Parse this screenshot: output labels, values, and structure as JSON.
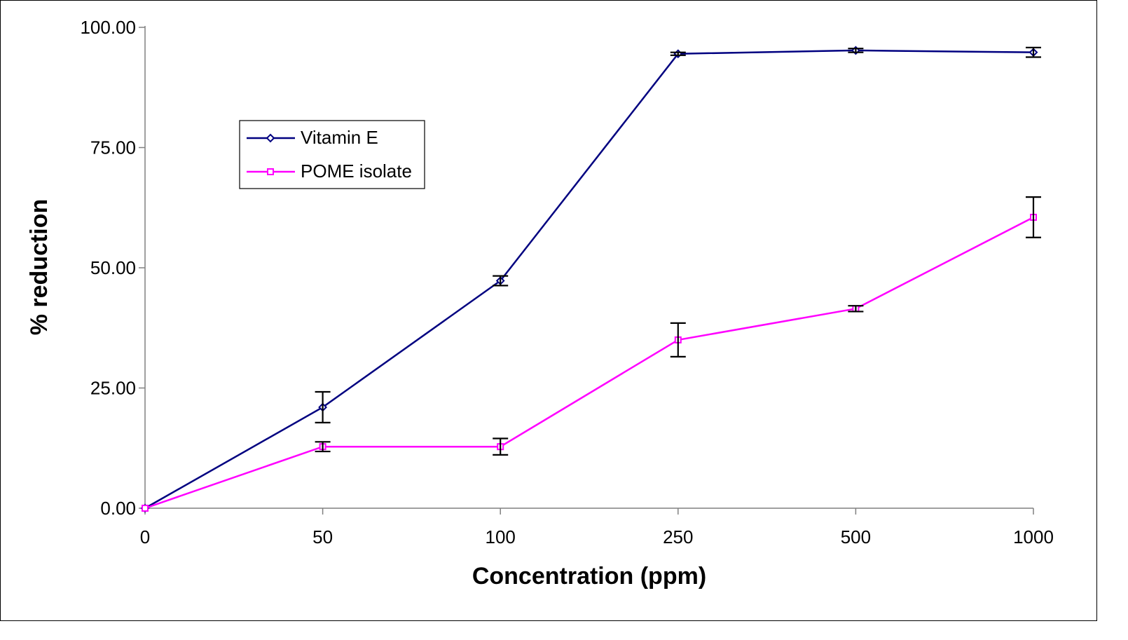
{
  "chart_data": {
    "type": "line",
    "categories": [
      "0",
      "50",
      "100",
      "250",
      "500",
      "1000"
    ],
    "xlabel": "Concentration (ppm)",
    "ylabel": "% reduction",
    "ylim": [
      0,
      100
    ],
    "yticks": [
      "0.00",
      "25.00",
      "50.00",
      "75.00",
      "100.00"
    ],
    "grid": false,
    "legend_position": "upper-left",
    "series": [
      {
        "name": "Vitamin E",
        "color": "#000080",
        "marker": "diamond",
        "values": [
          0,
          21,
          47.3,
          94.5,
          95.2,
          94.8
        ],
        "errors": [
          0,
          3.2,
          1.0,
          0.3,
          0.4,
          1.0
        ]
      },
      {
        "name": "POME isolate",
        "color": "#ff00ff",
        "marker": "square",
        "values": [
          0,
          12.8,
          12.8,
          35,
          41.5,
          60.5
        ],
        "errors": [
          0,
          1.0,
          1.7,
          3.5,
          0.6,
          4.2
        ]
      }
    ]
  }
}
